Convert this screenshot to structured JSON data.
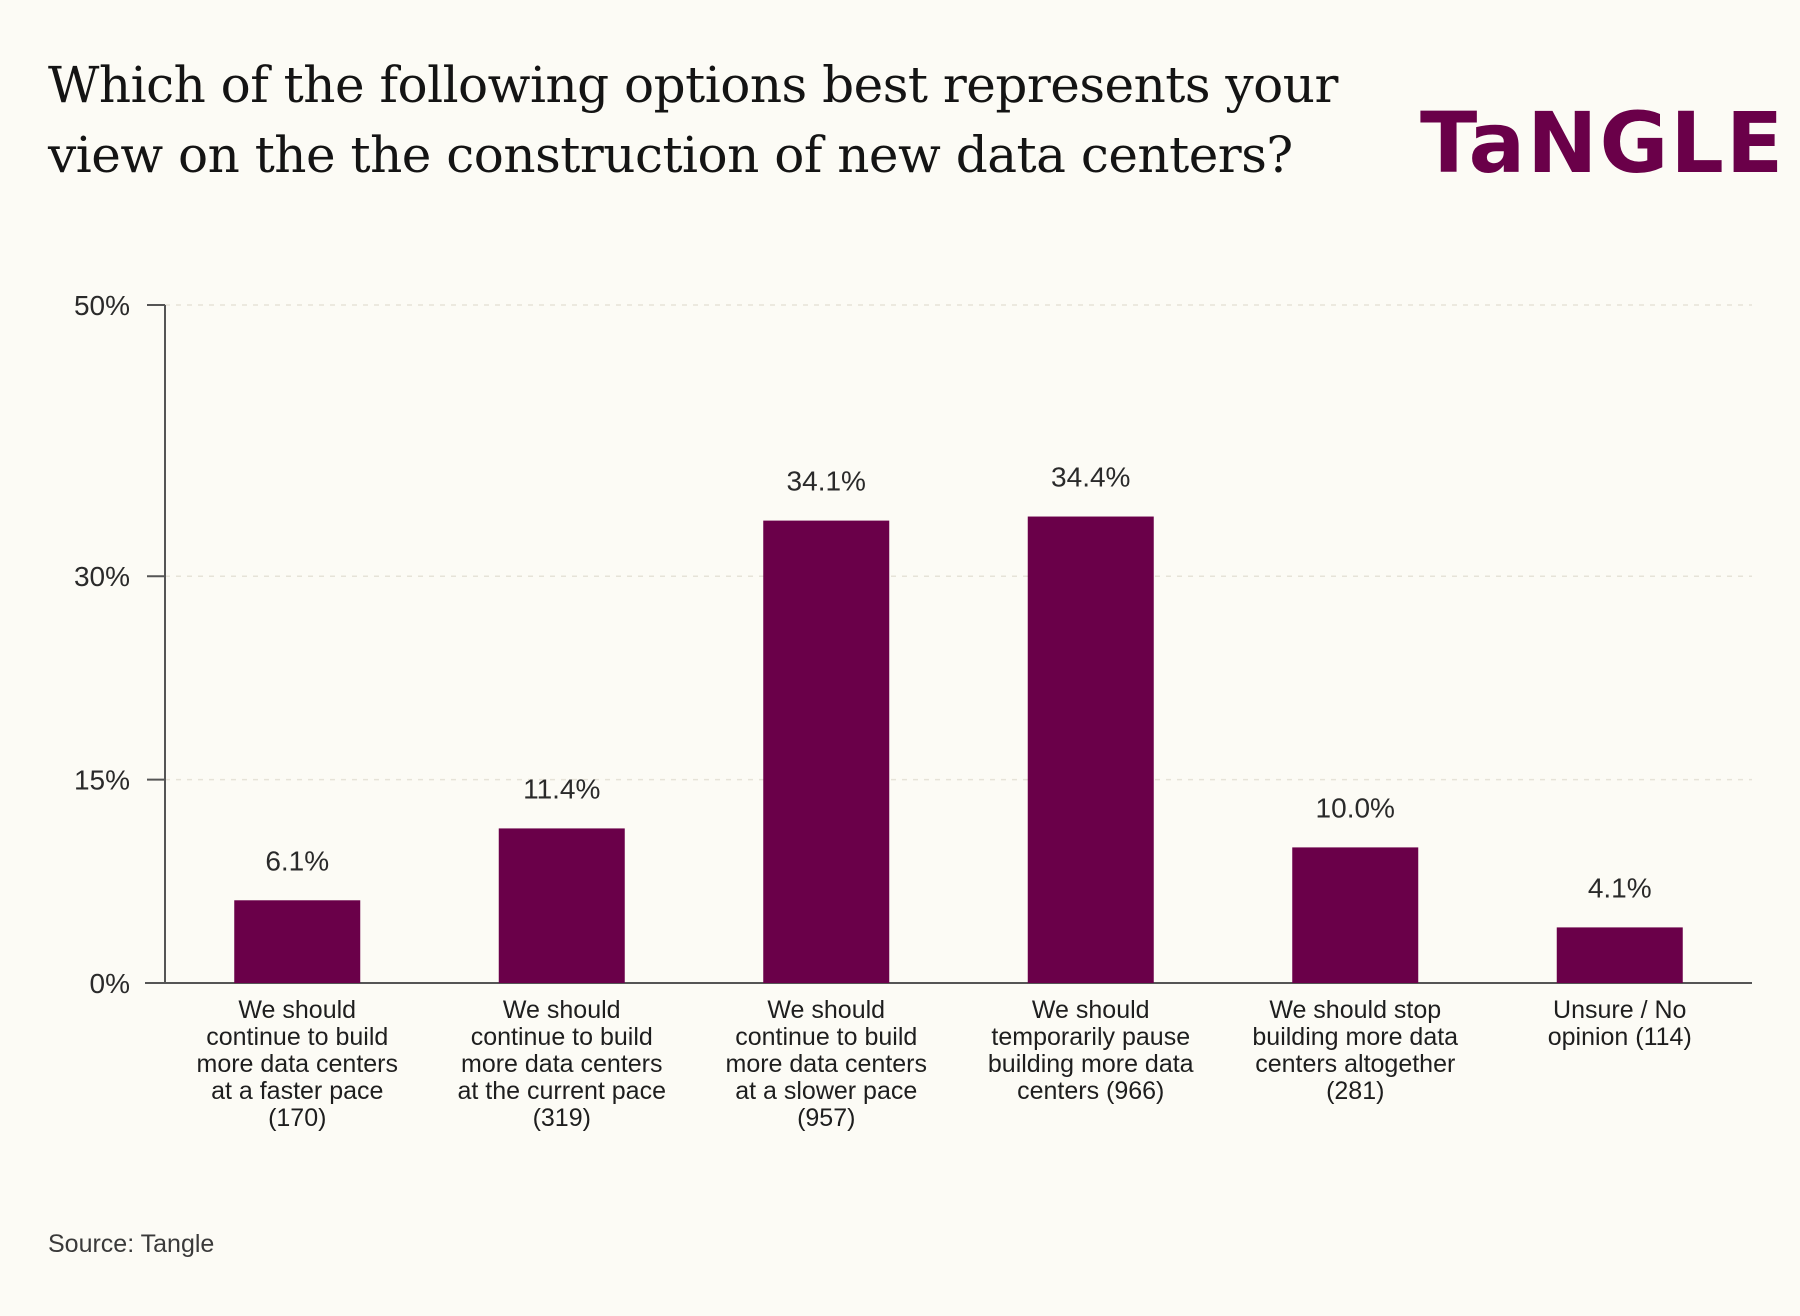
{
  "header": {
    "title": "Which of the following options best represents your view on the the construction of new data centers?",
    "logo_text": "TaNGLE"
  },
  "footer": {
    "source": "Source: Tangle"
  },
  "colors": {
    "bar": "#6a0049",
    "brand": "#6a0049",
    "background": "#fcfbf5",
    "axis": "#555555",
    "grid": "#e6e3d8"
  },
  "chart_data": {
    "type": "bar",
    "title": "Which of the following options best represents your view on the the construction of new data centers?",
    "xlabel": "",
    "ylabel": "",
    "ylim": [
      0,
      50
    ],
    "yticks": [
      0,
      15,
      30,
      50
    ],
    "ytick_labels": [
      "0%",
      "15%",
      "30%",
      "50%"
    ],
    "grid": "horizontal dashed",
    "legend": "none",
    "categories": [
      [
        "We should",
        "continue to build",
        "more data centers",
        "at a faster pace",
        "(170)"
      ],
      [
        "We should",
        "continue to build",
        "more data centers",
        "at the current pace",
        "(319)"
      ],
      [
        "We should",
        "continue to build",
        "more data centers",
        "at a slower pace",
        "(957)"
      ],
      [
        "We should",
        "temporarily pause",
        "building more data",
        "centers (966)"
      ],
      [
        "We should stop",
        "building more data",
        "centers altogether",
        "(281)"
      ],
      [
        "Unsure / No",
        "opinion (114)"
      ]
    ],
    "values": [
      6.1,
      11.4,
      34.1,
      34.4,
      10.0,
      4.1
    ],
    "value_labels": [
      "6.1%",
      "11.4%",
      "34.1%",
      "34.4%",
      "10.0%",
      "4.1%"
    ]
  }
}
